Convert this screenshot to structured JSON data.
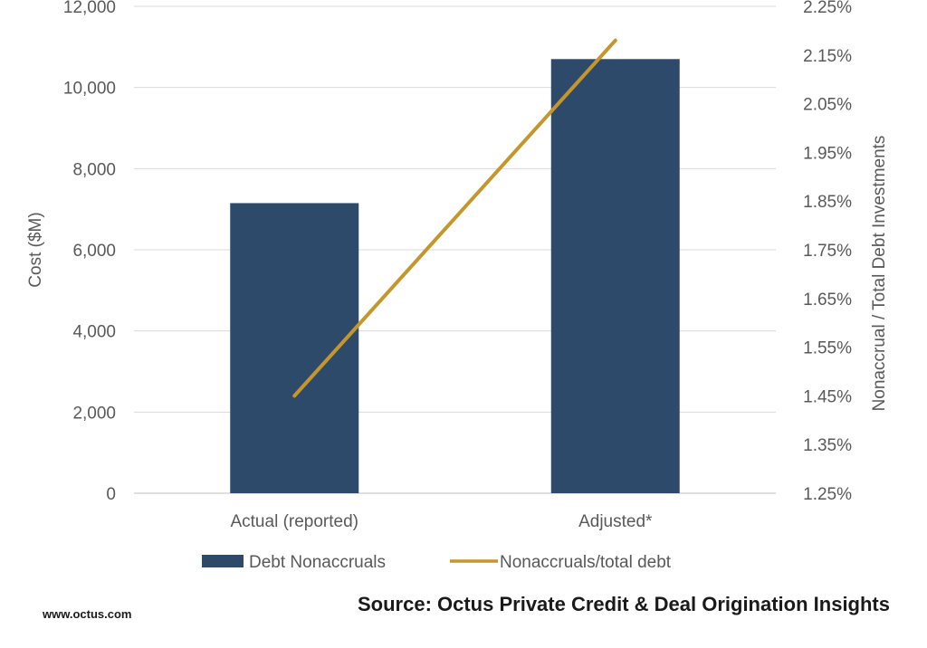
{
  "chart_data": {
    "type": "bar",
    "categories": [
      "Actual (reported)",
      "Adjusted*"
    ],
    "series": [
      {
        "name": "Debt Nonaccruals",
        "type": "bar",
        "axis": "left",
        "color": "#2e4a6b",
        "values": [
          7150,
          10700
        ]
      },
      {
        "name": "Nonaccruals/total debt",
        "type": "line",
        "axis": "right",
        "color": "#c4962c",
        "values": [
          1.45,
          2.18
        ]
      }
    ],
    "y_left": {
      "label": "Cost ($M)",
      "min": 0,
      "max": 12000,
      "ticks": [
        "0",
        "2,000",
        "4,000",
        "6,000",
        "8,000",
        "10,000",
        "12,000"
      ]
    },
    "y_right": {
      "label": "Nonaccrual / Total Debt Investments",
      "min": 1.25,
      "max": 2.25,
      "ticks": [
        "1.25%",
        "1.35%",
        "1.45%",
        "1.55%",
        "1.65%",
        "1.75%",
        "1.85%",
        "1.95%",
        "2.05%",
        "2.15%",
        "2.25%"
      ]
    },
    "grid": true,
    "legend_position": "bottom",
    "source": "Source: Octus Private Credit & Deal Origination Insights",
    "site": "www.octus.com"
  }
}
